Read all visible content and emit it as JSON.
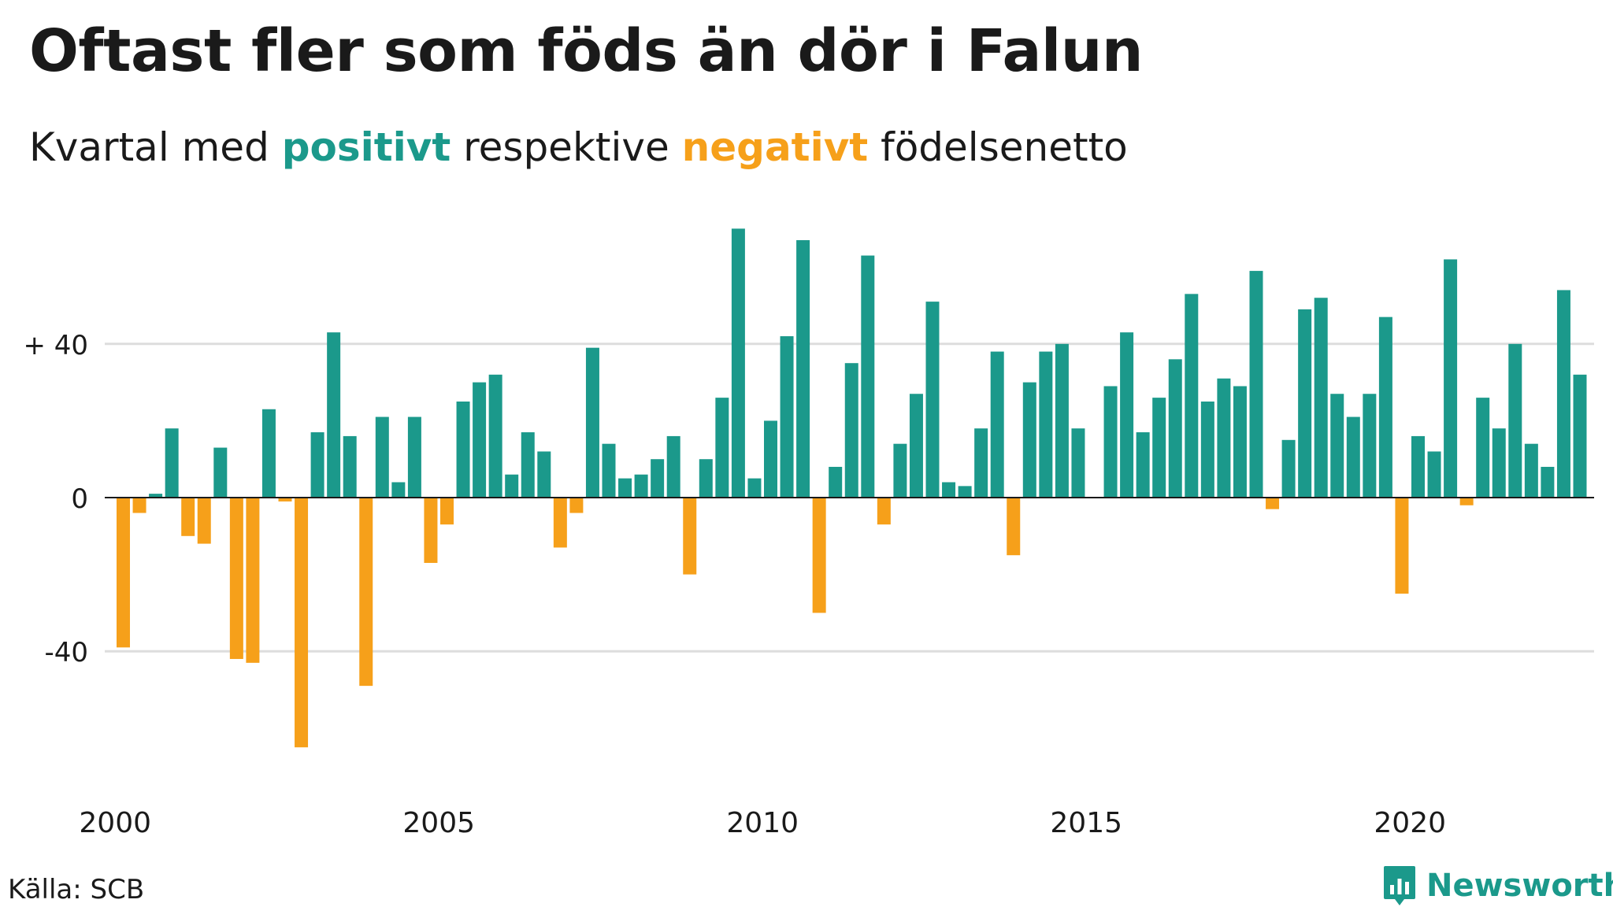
{
  "header": {
    "title": "Oftast fler som föds än dör i Falun",
    "subtitle_prefix": "Kvartal med ",
    "subtitle_positive": "positivt",
    "subtitle_middle": " respektive ",
    "subtitle_negative": "negativt",
    "subtitle_suffix": " födelsenetto"
  },
  "footer": {
    "source": "Källa: SCB",
    "brand": "Newsworthy",
    "brand_icon": "bar-chart-speech-bubble-icon"
  },
  "colors": {
    "positive": "#1b998b",
    "negative": "#f6a01a",
    "grid": "#dddddd",
    "baseline": "#1a1a1a",
    "text": "#1a1a1a"
  },
  "chart_data": {
    "type": "bar",
    "title": "Oftast fler som föds än dör i Falun",
    "subtitle": "Kvartal med positivt respektive negativt födelsenetto",
    "xlabel": "",
    "ylabel": "",
    "ylim": [
      -75,
      72
    ],
    "yticks": [
      {
        "value": 40,
        "label": "+ 40"
      },
      {
        "value": 0,
        "label": "0"
      },
      {
        "value": -40,
        "label": "-40"
      }
    ],
    "x_ticks": [
      {
        "value": 2000,
        "label": "2000"
      },
      {
        "value": 2005,
        "label": "2005"
      },
      {
        "value": 2010,
        "label": "2010"
      },
      {
        "value": 2015,
        "label": "2015"
      },
      {
        "value": 2020,
        "label": "2020"
      }
    ],
    "grid": true,
    "legend": "none",
    "series": [
      {
        "start_year": 2000,
        "periods_per_year": 4,
        "values": [
          -39,
          -4,
          1,
          18,
          -10,
          -12,
          13,
          -42,
          -43,
          23,
          -1,
          -65,
          17,
          43,
          16,
          -49,
          21,
          4,
          21,
          -17,
          -7,
          25,
          30,
          32,
          6,
          17,
          12,
          -13,
          -4,
          39,
          14,
          5,
          6,
          10,
          16,
          -20,
          10,
          26,
          70,
          5,
          20,
          42,
          67,
          -30,
          8,
          35,
          63,
          -7,
          14,
          27,
          51,
          4,
          3,
          18,
          38,
          -15,
          30,
          38,
          40,
          18,
          0,
          29,
          43,
          17,
          26,
          36,
          53,
          25,
          31,
          29,
          59,
          -3,
          15,
          49,
          52,
          27,
          21,
          27,
          47,
          -25,
          16,
          12,
          62,
          -2,
          26,
          18,
          40,
          14,
          8,
          54,
          32
        ]
      }
    ]
  }
}
